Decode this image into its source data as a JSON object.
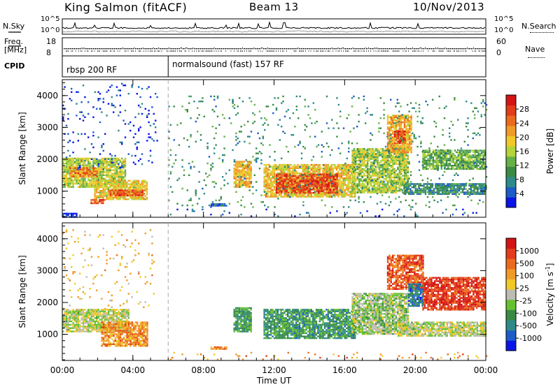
{
  "header": {
    "station": "King Salmon (fitACF)",
    "beam": "Beam 13",
    "date": "10/Nov/2013"
  },
  "noise_panel": {
    "left_label": "N.Sky",
    "right_label": "N.Search",
    "left_ticks": [
      "10^5",
      "10^0"
    ],
    "right_ticks": [
      "10^5",
      "10^0"
    ]
  },
  "freq_panel": {
    "left_label": "Freq.",
    "left_unit": "[MHz]",
    "right_label": "Nave",
    "left_ticks": [
      "18",
      "8"
    ],
    "right_ticks": [
      "60",
      "0"
    ]
  },
  "cpid": {
    "label": "CPID",
    "segments": [
      {
        "name": "rbsp 200 RF",
        "start_hour": 0,
        "end_hour": 6
      },
      {
        "name": "normalsound (fast) 157 RF",
        "start_hour": 6,
        "end_hour": 24
      }
    ]
  },
  "chart_data": [
    {
      "type": "heatmap",
      "title": "",
      "ylabel": "Slant Range [km]",
      "xlabel": "",
      "xlim": [
        0,
        24
      ],
      "ylim": [
        180,
        4500
      ],
      "yticks": [
        1000,
        2000,
        3000,
        4000
      ],
      "colorbar": {
        "label": "Power [dB]",
        "range": [
          0,
          32
        ],
        "ticks": [
          4,
          8,
          12,
          16,
          20,
          24,
          28
        ],
        "colors": [
          "#0a14e6",
          "#1c5cc8",
          "#2e8a8a",
          "#3a8a46",
          "#66b048",
          "#b4d43a",
          "#f0c828",
          "#f09a28",
          "#ec6a1e",
          "#e23c1a",
          "#d41414"
        ]
      },
      "regions": [
        {
          "t0": 0.0,
          "t1": 3.6,
          "r0": 1150,
          "r1": 2050,
          "level": 0.5
        },
        {
          "t0": 0.4,
          "t1": 2.0,
          "r0": 1450,
          "r1": 1750,
          "level": 0.72
        },
        {
          "t0": 0.0,
          "t1": 5.4,
          "r0": 1700,
          "r1": 4400,
          "level": 0.1,
          "sparse": true
        },
        {
          "t0": 1.8,
          "t1": 4.8,
          "r0": 750,
          "r1": 1350,
          "level": 0.58
        },
        {
          "t0": 2.6,
          "t1": 4.6,
          "r0": 850,
          "r1": 1050,
          "level": 0.82
        },
        {
          "t0": 1.6,
          "t1": 2.4,
          "r0": 600,
          "r1": 750,
          "level": 0.85
        },
        {
          "t0": 9.7,
          "t1": 10.7,
          "r0": 1150,
          "r1": 1950,
          "level": 0.64
        },
        {
          "t0": 11.4,
          "t1": 16.6,
          "r0": 850,
          "r1": 1850,
          "level": 0.6
        },
        {
          "t0": 12.1,
          "t1": 15.6,
          "r0": 950,
          "r1": 1550,
          "level": 0.84
        },
        {
          "t0": 16.4,
          "t1": 19.6,
          "r0": 950,
          "r1": 2350,
          "level": 0.48
        },
        {
          "t0": 18.4,
          "t1": 19.8,
          "r0": 2200,
          "r1": 3400,
          "level": 0.66
        },
        {
          "t0": 18.8,
          "t1": 19.4,
          "r0": 2500,
          "r1": 2900,
          "level": 0.86
        },
        {
          "t0": 19.4,
          "t1": 24.0,
          "r0": 900,
          "r1": 1250,
          "level": 0.26
        },
        {
          "t0": 20.4,
          "t1": 24.0,
          "r0": 1700,
          "r1": 2300,
          "level": 0.4
        },
        {
          "t0": 6.0,
          "t1": 24.0,
          "r0": 200,
          "r1": 450,
          "level": 0.12,
          "sparse": true
        },
        {
          "t0": 0.0,
          "t1": 0.8,
          "r0": 200,
          "r1": 320,
          "level": 0.05
        },
        {
          "t0": 8.4,
          "t1": 9.3,
          "r0": 520,
          "r1": 620,
          "level": 0.15
        },
        {
          "t0": 6.0,
          "t1": 24.0,
          "r0": 500,
          "r1": 4000,
          "level": 0.3,
          "sparse": true
        }
      ]
    },
    {
      "type": "heatmap",
      "title": "",
      "ylabel": "Slant Range [km]",
      "xlabel": "Time UT",
      "xlim": [
        0,
        24
      ],
      "ylim": [
        180,
        4500
      ],
      "yticks": [
        1000,
        2000,
        3000,
        4000
      ],
      "xticks": [
        "00:00",
        "04:00",
        "08:00",
        "12:00",
        "16:00",
        "20:00",
        "00:00"
      ],
      "colorbar": {
        "label": "Velocity [m s^-1]",
        "tick_labels": [
          "1000",
          "500",
          "100",
          "25",
          "-25",
          "-100",
          "-500",
          "-1000"
        ],
        "colors": [
          "#0a14e6",
          "#1c5cc8",
          "#2e8a8a",
          "#3a8a46",
          "#66c032",
          "#bcbcb4",
          "#f0c828",
          "#f09a28",
          "#ec6a1e",
          "#e23c1a",
          "#d41414"
        ]
      },
      "regions": [
        {
          "t0": 0.0,
          "t1": 3.8,
          "r0": 1100,
          "r1": 1800,
          "level": 0.5
        },
        {
          "t0": 0.0,
          "t1": 5.2,
          "r0": 1800,
          "r1": 4300,
          "level": 0.6,
          "sparse": true
        },
        {
          "t0": 2.2,
          "t1": 4.8,
          "r0": 650,
          "r1": 1400,
          "level": 0.7
        },
        {
          "t0": 9.7,
          "t1": 10.7,
          "r0": 1100,
          "r1": 1850,
          "level": 0.32
        },
        {
          "t0": 11.4,
          "t1": 16.6,
          "r0": 900,
          "r1": 1800,
          "level": 0.3
        },
        {
          "t0": 16.4,
          "t1": 19.6,
          "r0": 1000,
          "r1": 2300,
          "level": 0.45
        },
        {
          "t0": 19.0,
          "t1": 24.0,
          "r0": 950,
          "r1": 1400,
          "level": 0.5
        },
        {
          "t0": 18.4,
          "t1": 20.4,
          "r0": 2400,
          "r1": 3500,
          "level": 0.82
        },
        {
          "t0": 20.4,
          "t1": 24.0,
          "r0": 1800,
          "r1": 2800,
          "level": 0.88
        },
        {
          "t0": 19.6,
          "t1": 20.4,
          "r0": 1900,
          "r1": 2600,
          "level": 0.22
        },
        {
          "t0": 8.4,
          "t1": 9.3,
          "r0": 520,
          "r1": 620,
          "level": 0.75
        },
        {
          "t0": 6.0,
          "t1": 24.0,
          "r0": 200,
          "r1": 450,
          "level": 0.72,
          "sparse": true
        }
      ]
    }
  ]
}
